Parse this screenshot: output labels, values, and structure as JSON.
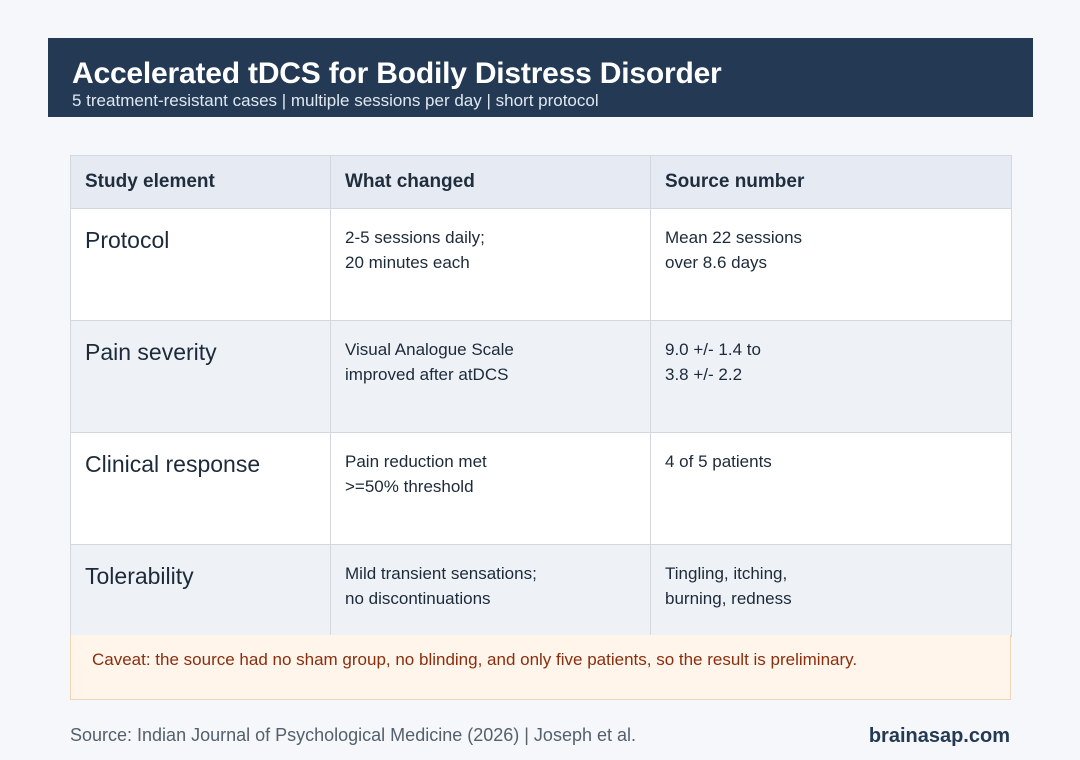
{
  "header": {
    "title": "Accelerated tDCS for Bodily Distress Disorder",
    "subtitle": "5 treatment-resistant cases | multiple sessions per day | short protocol"
  },
  "table": {
    "columns": [
      "Study element",
      "What changed",
      "Source number"
    ],
    "rows": [
      {
        "element": "Protocol",
        "changed": [
          "2-5 sessions daily;",
          "20 minutes each"
        ],
        "source": [
          "Mean 22 sessions",
          "over 8.6 days"
        ]
      },
      {
        "element": "Pain severity",
        "changed": [
          "Visual Analogue Scale",
          "improved after atDCS"
        ],
        "source": [
          "9.0 +/- 1.4 to",
          "3.8 +/- 2.2"
        ]
      },
      {
        "element": "Clinical response",
        "changed": [
          "Pain reduction met",
          ">=50% threshold"
        ],
        "source": [
          "4 of 5 patients"
        ]
      },
      {
        "element": "Tolerability",
        "changed": [
          "Mild transient sensations;",
          "no discontinuations"
        ],
        "source": [
          "Tingling, itching,",
          "burning, redness"
        ]
      }
    ]
  },
  "caveat": "Caveat: the source had no sham group, no blinding, and only five patients, so the result is preliminary.",
  "footer": {
    "source": "Source: Indian Journal of Psychological Medicine (2026) | Joseph et al.",
    "brand": "brainasap.com"
  },
  "colors": {
    "header_bg": "#243a54",
    "table_header_bg": "#e6ebf3",
    "alt_row_bg": "#eef2f7",
    "caveat_bg": "#fff5eb",
    "caveat_text": "#8a2e0e"
  }
}
